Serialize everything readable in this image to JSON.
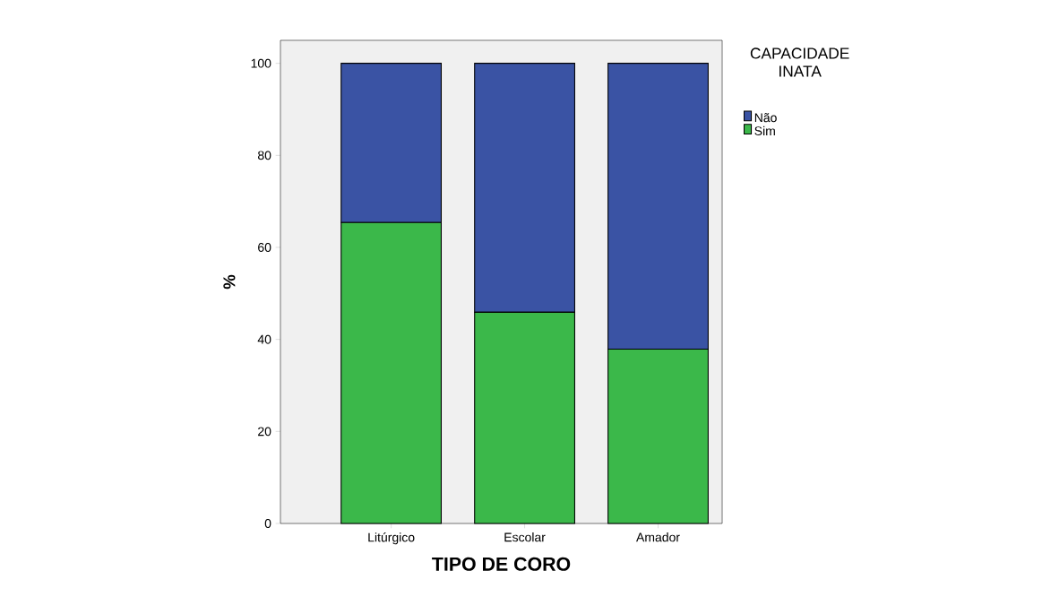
{
  "chart_data": {
    "type": "bar",
    "stacked": true,
    "xlabel": "TIPO DE CORO",
    "ylabel": "%",
    "legend_title": "CAPACIDADE INATA",
    "categories": [
      "Litúrgico",
      "Escolar",
      "Amador"
    ],
    "series": [
      {
        "name": "Sim",
        "color": "#3bb84a",
        "values": [
          65.4,
          45.9,
          37.9
        ]
      },
      {
        "name": "Não",
        "color": "#3a53a4",
        "values": [
          34.6,
          54.1,
          62.1
        ]
      }
    ],
    "ylim": [
      0,
      105
    ],
    "yticks": [
      0,
      20,
      40,
      60,
      80,
      100
    ],
    "legend": "top right"
  }
}
